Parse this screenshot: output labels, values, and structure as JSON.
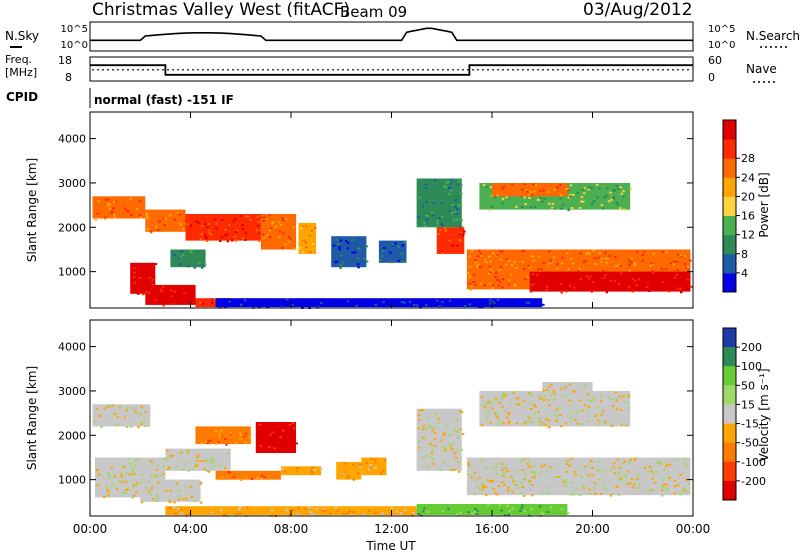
{
  "header": {
    "title": "Christmas Valley West (fitACF)",
    "beam": "Beam 09",
    "date": "03/Aug/2012"
  },
  "noise_panel": {
    "left_label": "N.Sky",
    "left_ticks": [
      "10^5",
      "10^0"
    ],
    "right_label": "N.Search",
    "right_ticks": [
      "10^5",
      "10^0"
    ]
  },
  "freq_panel": {
    "left_label_lines": [
      "Freq.",
      "[MHz]"
    ],
    "left_ticks": [
      "18",
      "8"
    ],
    "right_label": "Nave",
    "right_ticks": [
      "60",
      "0"
    ],
    "freq_steps": [
      {
        "t": 0,
        "freq": 14.6
      },
      {
        "t": 3.0,
        "freq": 14.6
      },
      {
        "t": 3.0,
        "freq": 10.6
      },
      {
        "t": 15.1,
        "freq": 10.6
      },
      {
        "t": 15.1,
        "freq": 14.6
      },
      {
        "t": 24,
        "freq": 14.6
      }
    ],
    "nave_level": 28
  },
  "cpid": {
    "label": "CPID",
    "text": "normal (fast) -151 IF"
  },
  "chart_data": [
    {
      "type": "heatmap",
      "name": "power",
      "ylabel": "Slant Range [km]",
      "yticks": [
        1000,
        2000,
        3000,
        4000
      ],
      "ylim": [
        180,
        4600
      ],
      "colorbar": {
        "label": "Power [dB]",
        "ticks": [
          "4",
          "8",
          "12",
          "16",
          "20",
          "24",
          "28"
        ],
        "colors": [
          "#0000e6",
          "#1f5aa8",
          "#2e8b57",
          "#4caf50",
          "#ffd23f",
          "#ffa500",
          "#ff6a00",
          "#ff2a00",
          "#e00000"
        ]
      },
      "regions": [
        {
          "t0": 0.1,
          "t1": 2.2,
          "r0": 2200,
          "r1": 2700,
          "c": 6
        },
        {
          "t0": 2.2,
          "t1": 3.8,
          "r0": 1900,
          "r1": 2400,
          "c": 6
        },
        {
          "t0": 1.6,
          "t1": 2.6,
          "r0": 500,
          "r1": 1200,
          "c": 8
        },
        {
          "t0": 2.2,
          "t1": 4.2,
          "r0": 250,
          "r1": 700,
          "c": 8
        },
        {
          "t0": 4.2,
          "t1": 5.6,
          "r0": 200,
          "r1": 400,
          "c": 7
        },
        {
          "t0": 3.2,
          "t1": 4.6,
          "r0": 1100,
          "r1": 1500,
          "c": 2
        },
        {
          "t0": 3.8,
          "t1": 6.8,
          "r0": 1700,
          "r1": 2300,
          "c": 7
        },
        {
          "t0": 6.8,
          "t1": 8.2,
          "r0": 1500,
          "r1": 2300,
          "c": 6
        },
        {
          "t0": 8.3,
          "t1": 9.0,
          "r0": 1400,
          "r1": 2100,
          "c": 5
        },
        {
          "t0": 9.6,
          "t1": 11.0,
          "r0": 1100,
          "r1": 1800,
          "c": 1
        },
        {
          "t0": 11.5,
          "t1": 12.6,
          "r0": 1200,
          "r1": 1700,
          "c": 1
        },
        {
          "t0": 13.0,
          "t1": 14.8,
          "r0": 2000,
          "r1": 3100,
          "c": 2
        },
        {
          "t0": 13.8,
          "t1": 14.9,
          "r0": 1400,
          "r1": 2000,
          "c": 7
        },
        {
          "t0": 15.0,
          "t1": 23.9,
          "r0": 600,
          "r1": 1500,
          "c": 6
        },
        {
          "t0": 17.5,
          "t1": 23.9,
          "r0": 550,
          "r1": 1000,
          "c": 8
        },
        {
          "t0": 15.5,
          "t1": 21.5,
          "r0": 2400,
          "r1": 3000,
          "c": 3
        },
        {
          "t0": 16.0,
          "t1": 19.0,
          "r0": 2700,
          "r1": 3000,
          "c": 6
        },
        {
          "t0": 5.0,
          "t1": 18.0,
          "r0": 200,
          "r1": 400,
          "c": 0
        }
      ]
    },
    {
      "type": "heatmap",
      "name": "velocity",
      "ylabel": "Slant Range [km]",
      "yticks": [
        1000,
        2000,
        3000,
        4000
      ],
      "ylim": [
        180,
        4600
      ],
      "xticks": [
        "00:00",
        "04:00",
        "08:00",
        "12:00",
        "16:00",
        "20:00",
        "00:00"
      ],
      "xlabel": "Time UT",
      "colorbar": {
        "label": "Velocity [m s⁻¹]",
        "ticks": [
          "200",
          "100",
          "50",
          "15",
          "-15",
          "-50",
          "-100",
          "-200"
        ],
        "colors": [
          "#1e3ca8",
          "#2e8b57",
          "#66cc33",
          "#a0d868",
          "#c8c8c8",
          "#ffa500",
          "#ff7a00",
          "#ff3a00",
          "#e00000"
        ]
      },
      "regions": [
        {
          "t0": 0.1,
          "t1": 2.4,
          "r0": 2200,
          "r1": 2700,
          "c": 4
        },
        {
          "t0": 0.2,
          "t1": 3.0,
          "r0": 600,
          "r1": 1500,
          "c": 4
        },
        {
          "t0": 2.0,
          "t1": 4.4,
          "r0": 500,
          "r1": 1000,
          "c": 4
        },
        {
          "t0": 3.0,
          "t1": 5.6,
          "r0": 1200,
          "r1": 1700,
          "c": 4
        },
        {
          "t0": 4.2,
          "t1": 6.4,
          "r0": 1800,
          "r1": 2200,
          "c": 6
        },
        {
          "t0": 6.6,
          "t1": 8.2,
          "r0": 1600,
          "r1": 2300,
          "c": 8
        },
        {
          "t0": 5.0,
          "t1": 7.6,
          "r0": 1000,
          "r1": 1200,
          "c": 6
        },
        {
          "t0": 7.6,
          "t1": 9.2,
          "r0": 1100,
          "r1": 1300,
          "c": 5
        },
        {
          "t0": 9.8,
          "t1": 10.8,
          "r0": 1000,
          "r1": 1400,
          "c": 5
        },
        {
          "t0": 10.8,
          "t1": 11.8,
          "r0": 1100,
          "r1": 1500,
          "c": 5
        },
        {
          "t0": 13.0,
          "t1": 14.8,
          "r0": 1200,
          "r1": 2600,
          "c": 4
        },
        {
          "t0": 15.0,
          "t1": 23.9,
          "r0": 650,
          "r1": 1500,
          "c": 4
        },
        {
          "t0": 15.5,
          "t1": 21.5,
          "r0": 2200,
          "r1": 3000,
          "c": 4
        },
        {
          "t0": 18.0,
          "t1": 20.0,
          "r0": 2800,
          "r1": 3200,
          "c": 4
        },
        {
          "t0": 3.0,
          "t1": 13.0,
          "r0": 200,
          "r1": 400,
          "c": 5
        },
        {
          "t0": 13.0,
          "t1": 19.0,
          "r0": 200,
          "r1": 450,
          "c": 2
        }
      ]
    }
  ]
}
